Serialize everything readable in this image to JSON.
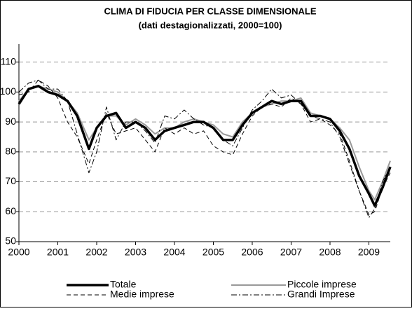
{
  "chart_data": {
    "type": "line",
    "title": "CLIMA DI FIDUCIA PER CLASSE DIMENSIONALE",
    "subtitle": "(dati destagionalizzati, 2000=100)",
    "x": [
      2000,
      2000.25,
      2000.5,
      2000.75,
      2001,
      2001.25,
      2001.5,
      2001.8,
      2002,
      2002.25,
      2002.5,
      2002.75,
      2003,
      2003.25,
      2003.5,
      2003.75,
      2004,
      2004.25,
      2004.5,
      2004.75,
      2005,
      2005.25,
      2005.5,
      2005.75,
      2006,
      2006.25,
      2006.5,
      2006.75,
      2007,
      2007.25,
      2007.5,
      2007.75,
      2008,
      2008.25,
      2008.5,
      2008.75,
      2009,
      2009.15,
      2009.35,
      2009.55
    ],
    "series": [
      {
        "name": "Totale",
        "color": "#000000",
        "width": 3.5,
        "dash": "none",
        "values": [
          96,
          101,
          102,
          100,
          99,
          97,
          92,
          81,
          88,
          92,
          93,
          88,
          90,
          88,
          84,
          87,
          88,
          89,
          90,
          90,
          88,
          84,
          84,
          89,
          93,
          95,
          97,
          96,
          97,
          97,
          92,
          92,
          91,
          87,
          81,
          72,
          66,
          62,
          68,
          75
        ]
      },
      {
        "name": "Piccole imprese",
        "color": "#999999",
        "width": 2,
        "dash": "none",
        "values": [
          97,
          101,
          102,
          101,
          100,
          97,
          93,
          84,
          88,
          92,
          92,
          89,
          91,
          89,
          86,
          88,
          88,
          90,
          91,
          90,
          89,
          86,
          85,
          90,
          93,
          95,
          96,
          97,
          97,
          98,
          93,
          92,
          91,
          88,
          84,
          75,
          67,
          64,
          70,
          77
        ]
      },
      {
        "name": "Medie imprese",
        "color": "#000000",
        "width": 1,
        "dash": "6,4",
        "values": [
          99,
          100,
          104,
          102,
          98,
          90,
          85,
          76,
          84,
          93,
          86,
          87,
          88,
          84,
          80,
          88,
          86,
          88,
          86,
          87,
          82,
          80,
          79,
          86,
          92,
          95,
          96,
          95,
          98,
          96,
          90,
          91,
          89,
          86,
          77,
          67,
          59,
          60,
          68,
          73
        ]
      },
      {
        "name": "Grandi Imprese",
        "color": "#000000",
        "width": 1,
        "dash": "8,3,2,3",
        "values": [
          100,
          103,
          104,
          101,
          101,
          97,
          86,
          73,
          80,
          95,
          84,
          90,
          90,
          87,
          83,
          92,
          91,
          94,
          91,
          89,
          88,
          84,
          82,
          88,
          94,
          97,
          101,
          98,
          99,
          96,
          92,
          91,
          90,
          85,
          76,
          67,
          58,
          61,
          70,
          75
        ]
      }
    ],
    "xlim": [
      2000,
      2009.55
    ],
    "xticks": [
      2000,
      2001,
      2002,
      2003,
      2004,
      2005,
      2006,
      2007,
      2008,
      2009
    ],
    "ylim": [
      50,
      116
    ],
    "yticks": [
      50,
      60,
      70,
      80,
      90,
      100,
      110
    ],
    "grid": true,
    "legend": "bottom"
  }
}
